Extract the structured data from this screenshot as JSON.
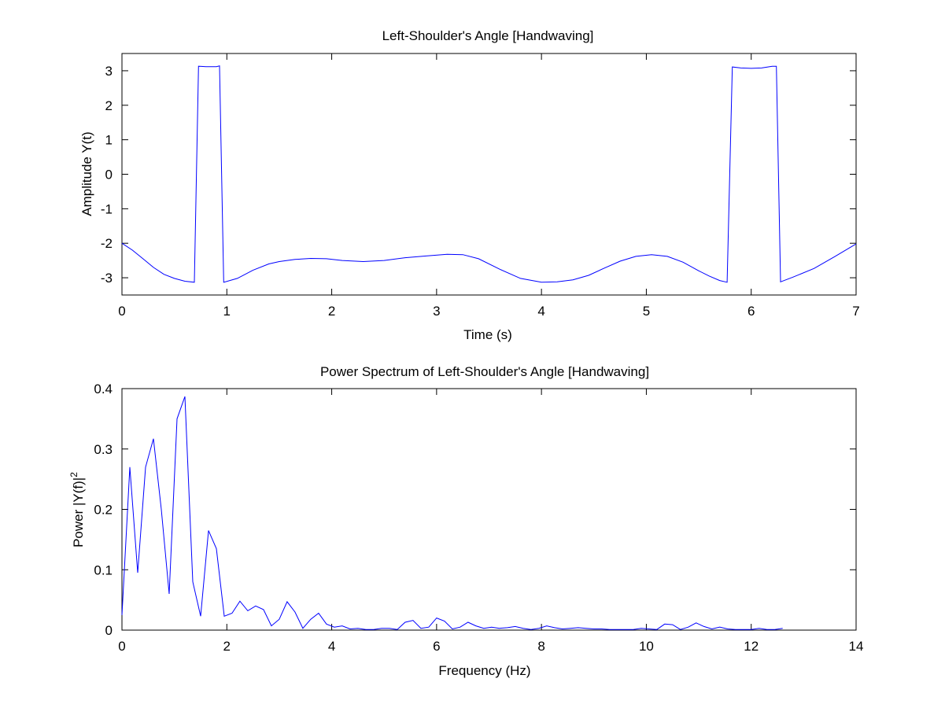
{
  "colors": {
    "background": "#ffffff",
    "axes": "#000000",
    "series": "#0000ff"
  },
  "chart_data": [
    {
      "type": "line",
      "title": "Left-Shoulder's Angle [Handwaving]",
      "xlabel": "Time (s)",
      "ylabel": "Amplitude Y(t)",
      "xlim": [
        0,
        7
      ],
      "ylim": [
        -3.5,
        3.5
      ],
      "xticks": [
        0,
        1,
        2,
        3,
        4,
        5,
        6,
        7
      ],
      "xtick_labels": [
        "0",
        "1",
        "2",
        "3",
        "4",
        "5",
        "6",
        "7"
      ],
      "yticks": [
        -3,
        -2,
        -1,
        0,
        1,
        2,
        3
      ],
      "ytick_labels": [
        "-3",
        "-2",
        "-1",
        "0",
        "1",
        "2",
        "3"
      ],
      "grid": false,
      "series": [
        {
          "color": "#0000ff",
          "x": [
            0,
            0.1,
            0.2,
            0.3,
            0.4,
            0.5,
            0.6,
            0.69,
            0.73,
            0.8,
            0.9,
            0.93,
            0.97,
            1.1,
            1.25,
            1.4,
            1.5,
            1.65,
            1.8,
            1.95,
            2.1,
            2.3,
            2.5,
            2.7,
            2.9,
            3.1,
            3.25,
            3.4,
            3.6,
            3.8,
            4.0,
            4.15,
            4.3,
            4.45,
            4.6,
            4.75,
            4.9,
            5.05,
            5.2,
            5.35,
            5.5,
            5.6,
            5.7,
            5.77,
            5.82,
            5.9,
            6.0,
            6.1,
            6.2,
            6.24,
            6.28,
            6.4,
            6.6,
            6.8,
            7.0
          ],
          "y": [
            -2.0,
            -2.2,
            -2.45,
            -2.7,
            -2.9,
            -3.02,
            -3.1,
            -3.13,
            3.13,
            3.12,
            3.12,
            3.14,
            -3.13,
            -3.02,
            -2.78,
            -2.6,
            -2.53,
            -2.47,
            -2.44,
            -2.45,
            -2.5,
            -2.53,
            -2.5,
            -2.42,
            -2.37,
            -2.32,
            -2.33,
            -2.45,
            -2.75,
            -3.02,
            -3.13,
            -3.12,
            -3.06,
            -2.93,
            -2.72,
            -2.52,
            -2.38,
            -2.33,
            -2.38,
            -2.55,
            -2.8,
            -2.95,
            -3.08,
            -3.13,
            3.11,
            3.08,
            3.07,
            3.08,
            3.13,
            3.13,
            -3.12,
            -2.98,
            -2.73,
            -2.38,
            -2.02
          ]
        }
      ]
    },
    {
      "type": "line",
      "title": "Power Spectrum of Left-Shoulder's Angle [Handwaving]",
      "xlabel": "Frequency (Hz)",
      "ylabel": "Power |Y(f)|",
      "ylabel_superscript": "2",
      "xlim": [
        0,
        14
      ],
      "ylim": [
        0,
        0.4
      ],
      "xticks": [
        0,
        2,
        4,
        6,
        8,
        10,
        12,
        14
      ],
      "xtick_labels": [
        "0",
        "2",
        "4",
        "6",
        "8",
        "10",
        "12",
        "14"
      ],
      "yticks": [
        0,
        0.1,
        0.2,
        0.3,
        0.4
      ],
      "ytick_labels": [
        "0",
        "0.1",
        "0.2",
        "0.3",
        "0.4"
      ],
      "grid": false,
      "series": [
        {
          "color": "#0000ff",
          "x": [
            0.0,
            0.15,
            0.3,
            0.45,
            0.6,
            0.75,
            0.9,
            1.05,
            1.2,
            1.35,
            1.5,
            1.65,
            1.8,
            1.95,
            2.1,
            2.25,
            2.4,
            2.55,
            2.7,
            2.85,
            3.0,
            3.15,
            3.3,
            3.45,
            3.6,
            3.75,
            3.9,
            4.05,
            4.2,
            4.35,
            4.5,
            4.65,
            4.8,
            4.95,
            5.1,
            5.25,
            5.4,
            5.55,
            5.7,
            5.85,
            6.0,
            6.15,
            6.3,
            6.45,
            6.6,
            6.75,
            6.9,
            7.05,
            7.2,
            7.35,
            7.5,
            7.65,
            7.8,
            7.95,
            8.1,
            8.25,
            8.4,
            8.55,
            8.7,
            8.85,
            9.0,
            9.15,
            9.3,
            9.45,
            9.6,
            9.75,
            9.9,
            10.05,
            10.2,
            10.35,
            10.5,
            10.65,
            10.8,
            10.95,
            11.1,
            11.25,
            11.4,
            11.55,
            11.7,
            11.85,
            12.0,
            12.15,
            12.3,
            12.45,
            12.6
          ],
          "y": [
            0.025,
            0.27,
            0.095,
            0.27,
            0.317,
            0.2,
            0.06,
            0.35,
            0.387,
            0.08,
            0.023,
            0.165,
            0.135,
            0.023,
            0.028,
            0.048,
            0.032,
            0.04,
            0.034,
            0.007,
            0.018,
            0.047,
            0.03,
            0.003,
            0.018,
            0.028,
            0.01,
            0.005,
            0.007,
            0.002,
            0.003,
            0.001,
            0.001,
            0.003,
            0.003,
            0.001,
            0.013,
            0.016,
            0.003,
            0.005,
            0.02,
            0.015,
            0.002,
            0.005,
            0.013,
            0.007,
            0.003,
            0.005,
            0.003,
            0.004,
            0.006,
            0.003,
            0.001,
            0.003,
            0.007,
            0.004,
            0.002,
            0.003,
            0.004,
            0.003,
            0.002,
            0.002,
            0.001,
            0.001,
            0.001,
            0.001,
            0.003,
            0.002,
            0.001,
            0.01,
            0.009,
            0.001,
            0.005,
            0.012,
            0.006,
            0.002,
            0.005,
            0.002,
            0.001,
            0.001,
            0.001,
            0.003,
            0.001,
            0.001,
            0.003
          ]
        }
      ]
    }
  ]
}
